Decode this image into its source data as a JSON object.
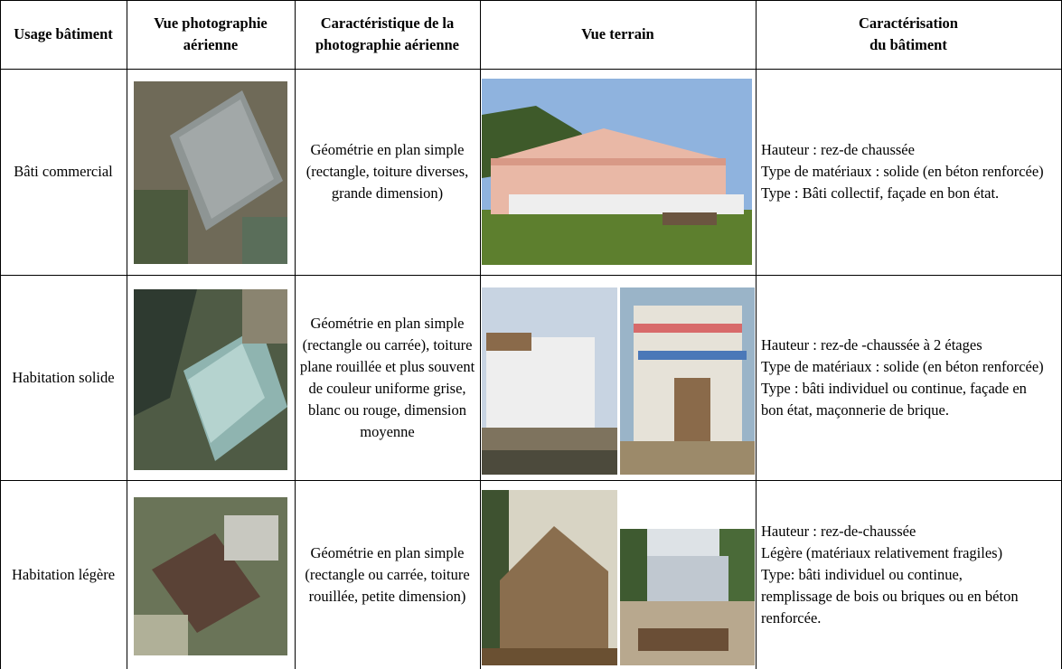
{
  "table": {
    "header": [
      [
        "Usage bâtiment"
      ],
      [
        "Vue photographie",
        "aérienne"
      ],
      [
        "Caractéristique de la",
        "photographie aérienne"
      ],
      [
        "Vue terrain"
      ],
      [
        "Caractérisation",
        "du bâtiment"
      ]
    ],
    "rows": [
      {
        "usage": [
          "Bâti commercial"
        ],
        "aerial_characteristic": [
          "Géométrie en plan simple",
          "(rectangle, toiture diverses,",
          "grande dimension)"
        ],
        "characterization": [
          "Hauteur : rez-de chaussée",
          "Type de matériaux : solide (en béton renforcée)",
          "Type : Bâti collectif, façade en bon état."
        ]
      },
      {
        "usage": [
          "Habitation solide"
        ],
        "aerial_characteristic": [
          "Géométrie en plan simple",
          "(rectangle ou carrée), toiture",
          "plane rouillée et plus souvent",
          "de couleur uniforme grise,",
          "blanc ou rouge, dimension",
          "moyenne"
        ],
        "characterization": [
          "Hauteur : rez-de -chaussée à 2 étages",
          "Type de matériaux : solide (en béton renforcée)",
          "Type : bâti individuel ou continue, façade en",
          "bon état, maçonnerie de brique."
        ]
      },
      {
        "usage": [
          "Habitation légère"
        ],
        "aerial_characteristic": [
          "Géométrie en plan simple",
          "(rectangle ou carrée, toiture",
          "rouillée, petite dimension)"
        ],
        "characterization": [
          "Hauteur : rez-de-chaussée",
          "Légère (matériaux relativement fragiles)",
          "Type: bâti individuel ou continue,",
          "remplissage de bois ou briques ou en béton",
          "renforcée."
        ]
      }
    ]
  }
}
